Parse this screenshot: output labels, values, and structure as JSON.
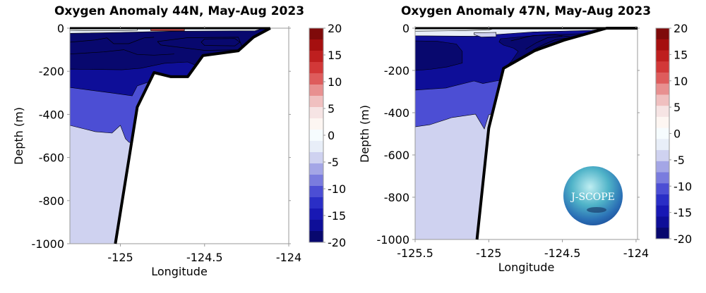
{
  "colorbar": {
    "clim": [
      -20,
      20
    ],
    "ticks": [
      20,
      15,
      10,
      5,
      0,
      -5,
      -10,
      -15,
      -20
    ],
    "tick_labels": [
      "20",
      "15",
      "10",
      "5",
      "0",
      "-5",
      "-10",
      "-15",
      "-20"
    ],
    "colors_top_to_bottom": [
      "#7f0a0a",
      "#a50f0f",
      "#be1f1f",
      "#d23838",
      "#de5c5c",
      "#e89090",
      "#f0c0c0",
      "#f6e4e4",
      "#fdf6f2",
      "#f6fcfe",
      "#e8eef8",
      "#cfd2f0",
      "#a4a6e6",
      "#7a7cde",
      "#4c4ed4",
      "#2a2ec6",
      "#1818b4",
      "#0e0e98",
      "#08086e"
    ]
  },
  "logo": {
    "text": "J-SCOPE"
  },
  "chart_data": [
    {
      "type": "contour",
      "title": "Oxygen Anomaly 44N, May-Aug 2023",
      "xlabel": "Longitude",
      "ylabel": "Depth (m)",
      "xlim": [
        -125.3,
        -124
      ],
      "ylim": [
        -1000,
        0
      ],
      "xticks": [
        -125,
        -124.5,
        -124
      ],
      "xtick_labels": [
        "-125",
        "-124.5",
        "-124"
      ],
      "yticks": [
        0,
        -200,
        -400,
        -600,
        -800,
        -1000
      ],
      "ytick_labels": [
        "0",
        "-200",
        "-400",
        "-600",
        "-800",
        "-1000"
      ],
      "bathymetry": [
        [
          -124.11,
          0
        ],
        [
          -124.21,
          -42
        ],
        [
          -124.3,
          -105
        ],
        [
          -124.51,
          -127
        ],
        [
          -124.6,
          -225
        ],
        [
          -124.7,
          -225
        ],
        [
          -124.8,
          -206
        ],
        [
          -124.9,
          -366
        ],
        [
          -125.03,
          -1000
        ]
      ],
      "regions": [
        {
          "anomaly": -19,
          "polygon": [
            [
              -125.3,
              0
            ],
            [
              -124,
              0
            ],
            [
              -124,
              -1000
            ],
            [
              -125.3,
              -1000
            ]
          ]
        },
        {
          "anomaly": -17,
          "polygon": [
            [
              -125.3,
              -190
            ],
            [
              -124.99,
              -193
            ],
            [
              -124.88,
              -186
            ],
            [
              -124.74,
              -163
            ],
            [
              -124.6,
              -157
            ],
            [
              -124.56,
              -170
            ],
            [
              -124.5,
              -196
            ],
            [
              -124.5,
              -1000
            ],
            [
              -125.3,
              -1000
            ]
          ]
        },
        {
          "anomaly": -11,
          "polygon": [
            [
              -125.3,
              -275
            ],
            [
              -125.05,
              -301
            ],
            [
              -124.93,
              -314
            ],
            [
              -124.9,
              -268
            ],
            [
              -124.84,
              -252
            ],
            [
              -124.8,
              -250
            ],
            [
              -124.8,
              -1000
            ],
            [
              -125.3,
              -1000
            ]
          ]
        },
        {
          "anomaly": -4,
          "polygon": [
            [
              -125.3,
              -451
            ],
            [
              -125.15,
              -480
            ],
            [
              -125.05,
              -487
            ],
            [
              -125.0,
              -451
            ],
            [
              -124.97,
              -513
            ],
            [
              -124.95,
              -529
            ],
            [
              -124.9,
              -540
            ],
            [
              -124.9,
              -1000
            ],
            [
              -125.3,
              -1000
            ]
          ]
        },
        {
          "anomaly": -2,
          "polygon": [
            [
              -125.3,
              0
            ],
            [
              -124.15,
              0
            ],
            [
              -124.2,
              -12
            ],
            [
              -124.7,
              -14
            ],
            [
              -125.0,
              -20
            ],
            [
              -125.3,
              -24
            ]
          ]
        },
        {
          "anomaly": 1,
          "polygon": [
            [
              -125.3,
              0
            ],
            [
              -124.9,
              0
            ],
            [
              -124.9,
              -10
            ],
            [
              -125.1,
              -12
            ],
            [
              -125.3,
              -10
            ]
          ]
        },
        {
          "anomaly": 10,
          "polygon": [
            [
              -124.82,
              -4
            ],
            [
              -124.62,
              -4
            ],
            [
              -124.62,
              -12
            ],
            [
              -124.82,
              -12
            ]
          ]
        }
      ],
      "contour_lines": [
        {
          "anomaly": -19,
          "points": [
            [
              -125.3,
              -65
            ],
            [
              -125.15,
              -55
            ],
            [
              -125.08,
              -45
            ],
            [
              -125.04,
              -72
            ],
            [
              -124.95,
              -72
            ],
            [
              -124.86,
              -45
            ],
            [
              -124.8,
              -42
            ]
          ]
        },
        {
          "anomaly": -19,
          "points": [
            [
              -125.3,
              -120
            ],
            [
              -125.1,
              -110
            ],
            [
              -124.98,
              -100
            ],
            [
              -124.9,
              -122
            ],
            [
              -124.8,
              -125
            ],
            [
              -124.68,
              -120
            ]
          ]
        },
        {
          "anomaly": -20,
          "points": [
            [
              -124.5,
              -50
            ],
            [
              -124.32,
              -48
            ],
            [
              -124.29,
              -65
            ],
            [
              -124.32,
              -82
            ],
            [
              -124.5,
              -80
            ],
            [
              -124.52,
              -65
            ],
            [
              -124.5,
              -50
            ]
          ]
        },
        {
          "anomaly": -20,
          "points": [
            [
              -124.78,
              -62
            ],
            [
              -124.6,
              -44
            ],
            [
              -124.3,
              -42
            ],
            [
              -124.27,
              -100
            ],
            [
              -124.5,
              -103
            ],
            [
              -124.76,
              -78
            ],
            [
              -124.78,
              -62
            ]
          ]
        }
      ]
    },
    {
      "type": "contour",
      "title": "Oxygen Anomaly 47N, May-Aug 2023",
      "xlabel": "Longitude",
      "ylabel": "Depth (m)",
      "xlim": [
        -125.5,
        -123.99
      ],
      "ylim": [
        -1000,
        0
      ],
      "xticks": [
        -125.5,
        -125,
        -124.5,
        -124
      ],
      "xtick_labels": [
        "-125.5",
        "-125",
        "-124.5",
        "-124"
      ],
      "yticks": [
        0,
        -200,
        -400,
        -600,
        -800,
        -1000
      ],
      "ytick_labels": [
        "0",
        "-200",
        "-400",
        "-600",
        "-800",
        "-1000"
      ],
      "bathymetry": [
        [
          -123.99,
          0
        ],
        [
          -124.2,
          0
        ],
        [
          -124.49,
          -57
        ],
        [
          -124.69,
          -107
        ],
        [
          -124.9,
          -190
        ],
        [
          -125.0,
          -473
        ],
        [
          -125.08,
          -1000
        ]
      ],
      "regions": [
        {
          "anomaly": -17,
          "polygon": [
            [
              -125.5,
              0
            ],
            [
              -123.99,
              0
            ],
            [
              -123.99,
              -1000
            ],
            [
              -125.5,
              -1000
            ]
          ]
        },
        {
          "anomaly": -19,
          "polygon": [
            [
              -125.5,
              -60
            ],
            [
              -125.35,
              -62
            ],
            [
              -125.22,
              -75
            ],
            [
              -125.18,
              -110
            ],
            [
              -125.18,
              -165
            ],
            [
              -125.28,
              -183
            ],
            [
              -125.4,
              -195
            ],
            [
              -125.5,
              -200
            ]
          ]
        },
        {
          "anomaly": -19,
          "polygon": [
            [
              -124.92,
              -50
            ],
            [
              -124.6,
              -30
            ],
            [
              -124.3,
              -25
            ],
            [
              -124.2,
              -20
            ],
            [
              -124.2,
              -400
            ],
            [
              -124.9,
              -400
            ],
            [
              -124.9,
              -190
            ],
            [
              -124.85,
              -160
            ],
            [
              -124.8,
              -110
            ],
            [
              -124.83,
              -95
            ],
            [
              -124.9,
              -80
            ],
            [
              -124.93,
              -65
            ]
          ]
        },
        {
          "anomaly": -11,
          "polygon": [
            [
              -125.5,
              -293
            ],
            [
              -125.29,
              -283
            ],
            [
              -125.1,
              -250
            ],
            [
              -125.04,
              -262
            ],
            [
              -124.95,
              -250
            ],
            [
              -124.9,
              -245
            ],
            [
              -124.9,
              -1000
            ],
            [
              -125.5,
              -1000
            ]
          ]
        },
        {
          "anomaly": -4,
          "polygon": [
            [
              -125.5,
              -467
            ],
            [
              -125.4,
              -457
            ],
            [
              -125.25,
              -423
            ],
            [
              -125.09,
              -407
            ],
            [
              -125.03,
              -477
            ],
            [
              -125.0,
              -410
            ],
            [
              -124.95,
              -400
            ],
            [
              -124.95,
              -1000
            ],
            [
              -125.5,
              -1000
            ]
          ]
        },
        {
          "anomaly": -2,
          "polygon": [
            [
              -125.5,
              0
            ],
            [
              -124.2,
              0
            ],
            [
              -124.3,
              -10
            ],
            [
              -124.7,
              -18
            ],
            [
              -124.95,
              -30
            ],
            [
              -125.1,
              -38
            ],
            [
              -125.5,
              -36
            ]
          ]
        },
        {
          "anomaly": -4,
          "polygon": [
            [
              -125.1,
              -22
            ],
            [
              -124.95,
              -20
            ],
            [
              -124.95,
              -40
            ],
            [
              -125.05,
              -42
            ],
            [
              -125.1,
              -30
            ]
          ]
        },
        {
          "anomaly": 1,
          "polygon": [
            [
              -125.5,
              0
            ],
            [
              -124.95,
              0
            ],
            [
              -125.0,
              -8
            ],
            [
              -125.2,
              -12
            ],
            [
              -125.5,
              -14
            ]
          ]
        }
      ],
      "contour_lines": [
        {
          "anomaly": -19,
          "points": [
            [
              -124.85,
              -60
            ],
            [
              -124.7,
              -35
            ],
            [
              -124.55,
              -32
            ],
            [
              -124.45,
              -40
            ]
          ]
        },
        {
          "anomaly": -20,
          "points": [
            [
              -124.75,
              -100
            ],
            [
              -124.68,
              -70
            ],
            [
              -124.6,
              -45
            ],
            [
              -124.5,
              -38
            ]
          ]
        },
        {
          "anomaly": -20,
          "points": [
            [
              -124.7,
              -103
            ],
            [
              -124.62,
              -75
            ],
            [
              -124.55,
              -55
            ],
            [
              -124.45,
              -45
            ]
          ]
        }
      ]
    }
  ]
}
